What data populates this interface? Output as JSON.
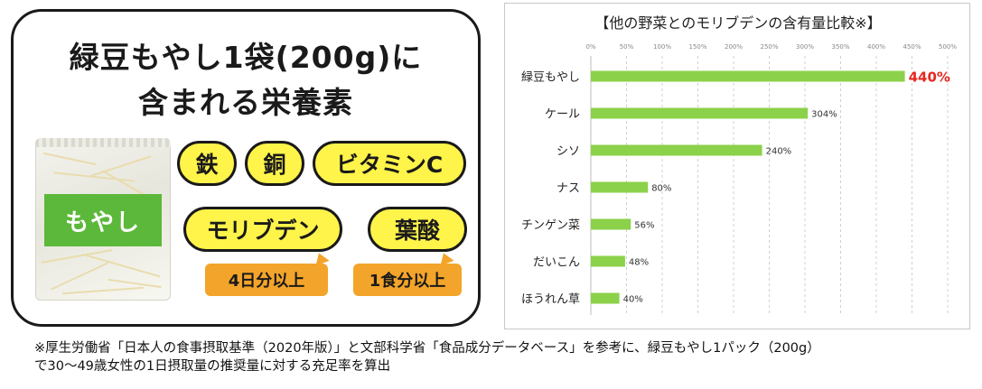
{
  "left_panel": {
    "title_line1": "緑豆もやし1袋(200g)に",
    "title_line2": "含まれる栄養素",
    "bag_label": "もやし",
    "nutrients": [
      "鉄",
      "銅",
      "ビタミンC",
      "モリブデン",
      "葉酸"
    ],
    "callouts": [
      "4日分以上",
      "1食分以上"
    ]
  },
  "colors": {
    "bar": "#8cd14a",
    "highlight_text": "#e8261f",
    "pill_fill": "#fff44a",
    "callout_fill": "#f3a42a",
    "bag_label": "#5cb83a"
  },
  "chart_data": {
    "type": "bar",
    "orientation": "horizontal",
    "title": "【他の野菜とのモリブデンの含有量比較※】",
    "categories": [
      "緑豆もやし",
      "ケール",
      "シソ",
      "ナス",
      "チンゲン菜",
      "だいこん",
      "ほうれん草"
    ],
    "values": [
      440,
      304,
      240,
      80,
      56,
      48,
      40
    ],
    "value_labels": [
      "440%",
      "304%",
      "240%",
      "80%",
      "56%",
      "48%",
      "40%"
    ],
    "highlight_index": 0,
    "xlim": [
      0,
      500
    ],
    "xticks": [
      "0%",
      "50%",
      "100%",
      "150%",
      "200%",
      "250%",
      "300%",
      "350%",
      "400%",
      "450%",
      "500%"
    ],
    "grid": "vertical-dashed",
    "legend": "none"
  },
  "footnote": {
    "line1": "※厚生労働省「日本人の食事摂取基準（2020年版）」と文部科学省「食品成分データベース」を参考に、緑豆もやし1パック（200g）",
    "line2": "で30～49歳女性の1日摂取量の推奨量に対する充足率を算出"
  }
}
